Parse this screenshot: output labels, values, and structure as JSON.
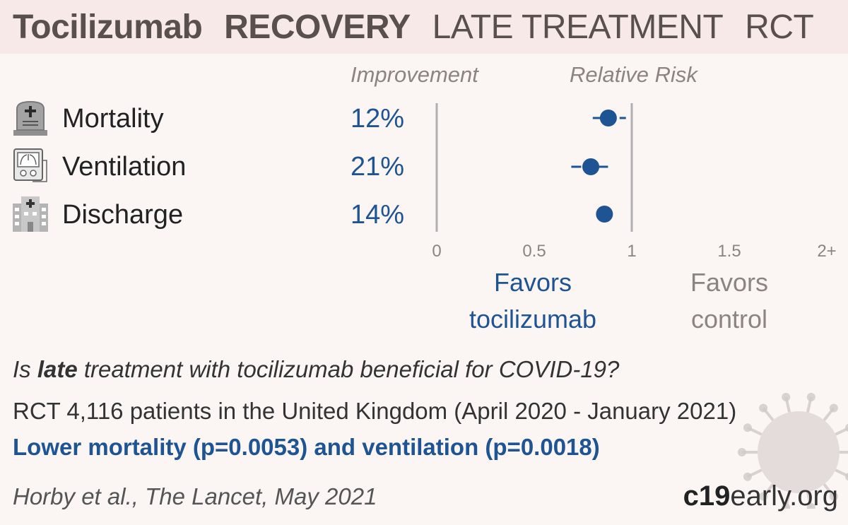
{
  "header": {
    "drug": "Tocilizumab",
    "study": "RECOVERY",
    "stage": "LATE TREATMENT",
    "design": "RCT"
  },
  "columns": {
    "improvement": "Improvement",
    "relative_risk": "Relative Risk"
  },
  "rows": [
    {
      "label": "Mortality",
      "improvement": "12%",
      "icon": "tombstone-icon"
    },
    {
      "label": "Ventilation",
      "improvement": "21%",
      "icon": "ventilator-icon"
    },
    {
      "label": "Discharge",
      "improvement": "14%",
      "icon": "hospital-icon"
    }
  ],
  "favors": {
    "treatment": [
      "Favors",
      "tocilizumab"
    ],
    "control": [
      "Favors",
      "control"
    ]
  },
  "question": {
    "prefix": "Is ",
    "emphasis": "late",
    "suffix": " treatment with tocilizumab beneficial for COVID-19?"
  },
  "study_line": "RCT 4,116 patients in the United Kingdom (April 2020 - January 2021)",
  "conclusion": "Lower mortality (p=0.0053) and ventilation (p=0.0018)",
  "citation": "Horby et al., The Lancet, May 2021",
  "brand": {
    "bold": "c19",
    "rest": "early.org"
  },
  "colors": {
    "accent": "#1f5494",
    "header_bg": "#f6e9e7",
    "page_bg": "#fbf5f4",
    "muted": "#8c8481"
  },
  "chart_data": {
    "type": "scatter",
    "title": "Relative Risk",
    "categories": [
      "Mortality",
      "Ventilation",
      "Discharge"
    ],
    "series": [
      {
        "values": [
          0.88,
          0.79,
          0.86
        ],
        "ci_low": [
          0.8,
          0.69,
          null
        ],
        "ci_high": [
          0.97,
          0.91,
          null
        ]
      }
    ],
    "x_ticks": [
      "0",
      "0.5",
      "1",
      "1.5",
      "2+"
    ],
    "x_tick_values": [
      0,
      0.5,
      1,
      1.5,
      2
    ],
    "xlim": [
      0,
      2
    ],
    "reference_line": 1,
    "grid": false
  }
}
